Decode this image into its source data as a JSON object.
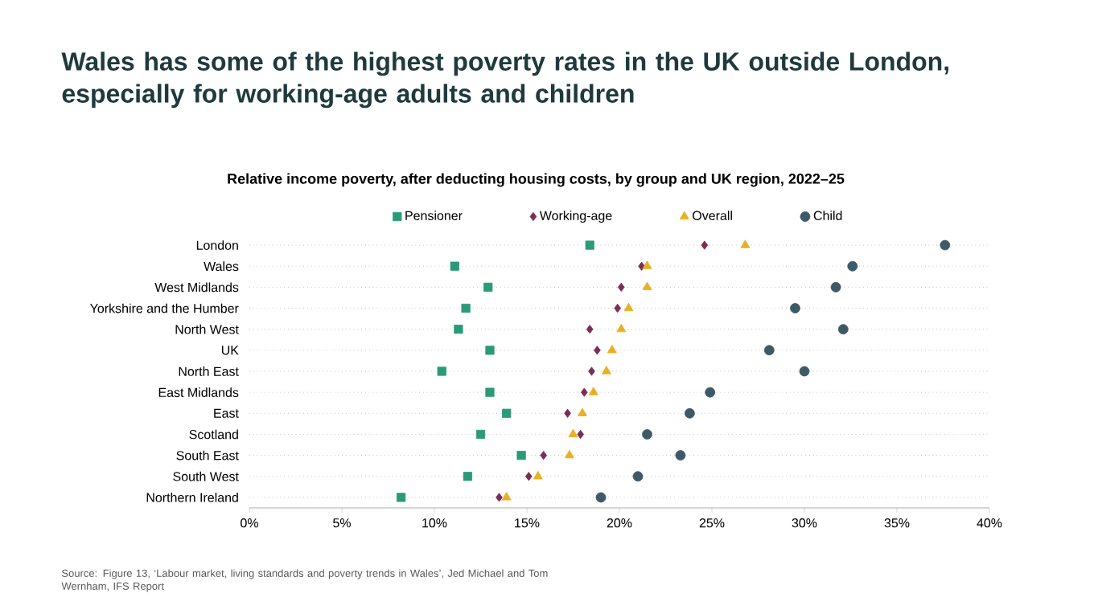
{
  "chart_data": {
    "type": "scatter",
    "orientation": "horizontal",
    "title": "Wales has some of the highest poverty rates in the UK outside London, especially for working-age adults and children",
    "subtitle": "Relative income poverty, after deducting housing costs, by group and UK region, 2022–25",
    "categories": [
      "London",
      "Wales",
      "West Midlands",
      "Yorkshire and the Humber",
      "North West",
      "UK",
      "North East",
      "East Midlands",
      "East",
      "Scotland",
      "South East",
      "South West",
      "Northern Ireland"
    ],
    "series": [
      {
        "name": "Pensioner",
        "color": "#2a9a78",
        "marker": "square",
        "values": [
          18.4,
          11.1,
          12.9,
          11.7,
          11.3,
          13.0,
          10.4,
          13.0,
          13.9,
          12.5,
          14.7,
          11.8,
          8.2
        ]
      },
      {
        "name": "Working-age",
        "color": "#7b2d55",
        "marker": "diamond",
        "values": [
          24.6,
          21.2,
          20.1,
          19.9,
          18.4,
          18.8,
          18.5,
          18.1,
          17.2,
          17.9,
          15.9,
          15.1,
          13.5
        ]
      },
      {
        "name": "Overall",
        "color": "#e8b024",
        "marker": "triangle",
        "values": [
          26.8,
          21.5,
          21.5,
          20.5,
          20.1,
          19.6,
          19.3,
          18.6,
          18.0,
          17.5,
          17.3,
          15.6,
          13.9
        ]
      },
      {
        "name": "Child",
        "color": "#3d5a66",
        "marker": "circle",
        "values": [
          37.6,
          32.6,
          31.7,
          29.5,
          32.1,
          28.1,
          30.0,
          24.9,
          23.8,
          21.5,
          23.3,
          21.0,
          19.0
        ]
      }
    ],
    "xlim": [
      0,
      40
    ],
    "xticks": [
      {
        "value": 0,
        "label": "0%"
      },
      {
        "value": 5,
        "label": "5%"
      },
      {
        "value": 10,
        "label": "10%"
      },
      {
        "value": 15,
        "label": "15%"
      },
      {
        "value": 20,
        "label": "20%"
      },
      {
        "value": 25,
        "label": "25%"
      },
      {
        "value": 30,
        "label": "30%"
      },
      {
        "value": 35,
        "label": "35%"
      },
      {
        "value": 40,
        "label": "40%"
      }
    ],
    "grid": "y",
    "legend": "top",
    "annotations": [
      "Source: Figure 13, ‘Labour market, living standards and poverty trends in Wales’, Jed Michael and Tom Wernham, IFS Report"
    ]
  }
}
